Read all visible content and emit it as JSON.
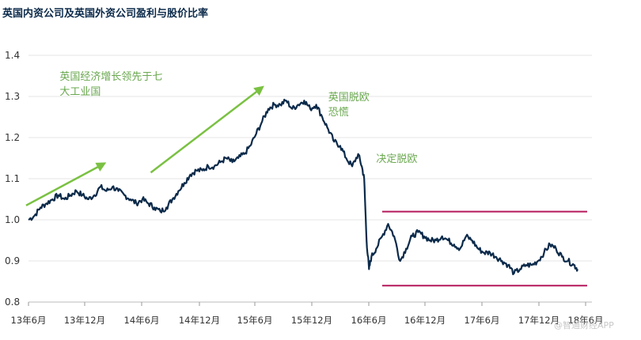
{
  "chart_data": {
    "type": "line",
    "title": "英国内资公司及英国外资公司盈利与股价比率",
    "ylim": [
      0.8,
      1.4
    ],
    "yticks": [
      "0.8",
      "0.9",
      "1.0",
      "1.1",
      "1.2",
      "1.3",
      "1.4"
    ],
    "xticks": [
      "13年6月",
      "13年12月",
      "14年6月",
      "14年12月",
      "15年6月",
      "15年12月",
      "16年6月",
      "16年12月",
      "17年6月",
      "17年12月",
      "18年6月"
    ],
    "grid": true,
    "series": [
      {
        "name": "",
        "color": "#0b2a4a",
        "points": [
          [
            0,
            1.0
          ],
          [
            0.25,
            1.01
          ],
          [
            0.5,
            1.03
          ],
          [
            0.75,
            1.04
          ],
          [
            1,
            1.05
          ],
          [
            1.25,
            1.06
          ],
          [
            1.5,
            1.05
          ],
          [
            1.75,
            1.06
          ],
          [
            2,
            1.07
          ],
          [
            2.25,
            1.06
          ],
          [
            2.5,
            1.05
          ],
          [
            2.75,
            1.06
          ],
          [
            3,
            1.08
          ],
          [
            3.25,
            1.07
          ],
          [
            3.5,
            1.08
          ],
          [
            3.75,
            1.07
          ],
          [
            4,
            1.06
          ],
          [
            4.25,
            1.05
          ],
          [
            4.5,
            1.04
          ],
          [
            4.75,
            1.05
          ],
          [
            5,
            1.04
          ],
          [
            5.25,
            1.03
          ],
          [
            5.5,
            1.02
          ],
          [
            5.75,
            1.03
          ],
          [
            6,
            1.05
          ],
          [
            6.25,
            1.07
          ],
          [
            6.5,
            1.09
          ],
          [
            6.75,
            1.11
          ],
          [
            7,
            1.12
          ],
          [
            7.25,
            1.12
          ],
          [
            7.5,
            1.13
          ],
          [
            7.75,
            1.13
          ],
          [
            8,
            1.14
          ],
          [
            8.25,
            1.15
          ],
          [
            8.5,
            1.14
          ],
          [
            8.75,
            1.15
          ],
          [
            9,
            1.16
          ],
          [
            9.25,
            1.18
          ],
          [
            9.5,
            1.21
          ],
          [
            9.75,
            1.24
          ],
          [
            10,
            1.27
          ],
          [
            10.25,
            1.28
          ],
          [
            10.5,
            1.28
          ],
          [
            10.75,
            1.29
          ],
          [
            11,
            1.27
          ],
          [
            11.25,
            1.28
          ],
          [
            11.5,
            1.29
          ],
          [
            11.75,
            1.27
          ],
          [
            12,
            1.28
          ],
          [
            12.25,
            1.25
          ],
          [
            12.5,
            1.22
          ],
          [
            12.75,
            1.19
          ],
          [
            13,
            1.18
          ],
          [
            13.25,
            1.15
          ],
          [
            13.5,
            1.13
          ],
          [
            13.75,
            1.16
          ],
          [
            13.9,
            1.13
          ],
          [
            14,
            1.1
          ],
          [
            14.1,
            0.95
          ],
          [
            14.2,
            0.88
          ],
          [
            14.3,
            0.91
          ],
          [
            14.5,
            0.93
          ],
          [
            14.75,
            0.96
          ],
          [
            15,
            0.99
          ],
          [
            15.25,
            0.96
          ],
          [
            15.5,
            0.9
          ],
          [
            15.75,
            0.93
          ],
          [
            16,
            0.96
          ],
          [
            16.25,
            0.97
          ],
          [
            16.5,
            0.96
          ],
          [
            16.75,
            0.95
          ],
          [
            17,
            0.95
          ],
          [
            17.25,
            0.96
          ],
          [
            17.5,
            0.95
          ],
          [
            17.75,
            0.94
          ],
          [
            18,
            0.93
          ],
          [
            18.25,
            0.96
          ],
          [
            18.5,
            0.95
          ],
          [
            18.75,
            0.93
          ],
          [
            19,
            0.92
          ],
          [
            19.25,
            0.92
          ],
          [
            19.5,
            0.91
          ],
          [
            19.75,
            0.9
          ],
          [
            20,
            0.89
          ],
          [
            20.25,
            0.87
          ],
          [
            20.5,
            0.88
          ],
          [
            20.75,
            0.89
          ],
          [
            21,
            0.89
          ],
          [
            21.25,
            0.9
          ],
          [
            21.5,
            0.92
          ],
          [
            21.75,
            0.94
          ],
          [
            22,
            0.93
          ],
          [
            22.25,
            0.91
          ],
          [
            22.5,
            0.9
          ],
          [
            22.75,
            0.89
          ],
          [
            22.9,
            0.88
          ]
        ]
      }
    ],
    "reference_lines": [
      {
        "y": 1.02,
        "x_from": 14.75,
        "x_to": 23.3,
        "color": "#b5195b"
      },
      {
        "y": 0.84,
        "x_from": 14.75,
        "x_to": 23.3,
        "color": "#b5195b"
      }
    ],
    "annotations": [
      {
        "lines": [
          "英国经济增长领先于七",
          "大工业国"
        ],
        "x": 1.3,
        "y": 1.34
      },
      {
        "lines": [
          "英国脱欧",
          "恐慌"
        ],
        "x": 12.5,
        "y": 1.29
      },
      {
        "lines": [
          "决定脱欧"
        ],
        "x": 14.5,
        "y": 1.14
      }
    ],
    "arrows": [
      {
        "from": [
          -0.1,
          1.035
        ],
        "to": [
          3.1,
          1.135
        ],
        "color": "#7ac142"
      },
      {
        "from": [
          5.1,
          1.115
        ],
        "to": [
          9.7,
          1.32
        ],
        "color": "#7ac142"
      }
    ]
  },
  "watermark": "@智通财经APP"
}
